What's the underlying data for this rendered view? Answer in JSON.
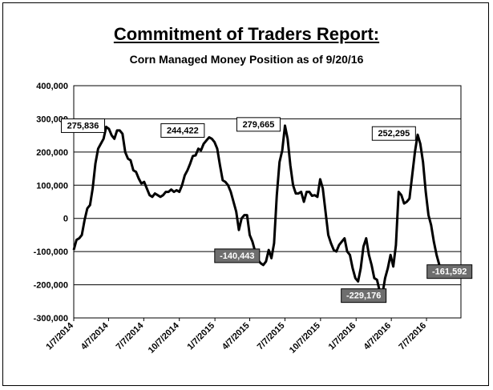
{
  "title": "Commitment of Traders Report:",
  "subtitle": "Corn Managed Money Position as of 9/20/16",
  "chart_data": {
    "type": "line",
    "ylim": [
      -300000,
      400000
    ],
    "xlim": [
      "2014-01-07",
      "2016-10-04"
    ],
    "y_ticks": [
      {
        "value": 400000,
        "label": "400,000"
      },
      {
        "value": 300000,
        "label": "300,000"
      },
      {
        "value": 200000,
        "label": "200,000"
      },
      {
        "value": 100000,
        "label": "100,000"
      },
      {
        "value": 0,
        "label": "0"
      },
      {
        "value": -100000,
        "label": "-100,000"
      },
      {
        "value": -200000,
        "label": "-200,000"
      },
      {
        "value": -300000,
        "label": "-300,000"
      }
    ],
    "x_ticks": [
      {
        "value": "2014-01-07",
        "label": "1/7/2014"
      },
      {
        "value": "2014-04-07",
        "label": "4/7/2014"
      },
      {
        "value": "2014-07-07",
        "label": "7/7/2014"
      },
      {
        "value": "2014-10-07",
        "label": "10/7/2014"
      },
      {
        "value": "2015-01-07",
        "label": "1/7/2015"
      },
      {
        "value": "2015-04-07",
        "label": "4/7/2015"
      },
      {
        "value": "2015-07-07",
        "label": "7/7/2015"
      },
      {
        "value": "2015-10-07",
        "label": "10/7/2015"
      },
      {
        "value": "2016-01-07",
        "label": "1/7/2016"
      },
      {
        "value": "2016-04-07",
        "label": "4/7/2016"
      },
      {
        "value": "2016-07-07",
        "label": "7/7/2016"
      }
    ],
    "series_color": "#000000",
    "series": [
      {
        "x": [
          "2014-01-07",
          "2014-01-14",
          "2014-01-21",
          "2014-01-28",
          "2014-02-04",
          "2014-02-11",
          "2014-02-18",
          "2014-02-25",
          "2014-03-04",
          "2014-03-11",
          "2014-03-18",
          "2014-03-25",
          "2014-04-01",
          "2014-04-08",
          "2014-04-15",
          "2014-04-22",
          "2014-04-29",
          "2014-05-06",
          "2014-05-13",
          "2014-05-20",
          "2014-05-27",
          "2014-06-03",
          "2014-06-10",
          "2014-06-17",
          "2014-06-24",
          "2014-07-01",
          "2014-07-08",
          "2014-07-15",
          "2014-07-22",
          "2014-07-29",
          "2014-08-05",
          "2014-08-12",
          "2014-08-19",
          "2014-08-26",
          "2014-09-02",
          "2014-09-09",
          "2014-09-16",
          "2014-09-23",
          "2014-09-30",
          "2014-10-07",
          "2014-10-14",
          "2014-10-21",
          "2014-10-28",
          "2014-11-04",
          "2014-11-11",
          "2014-11-18",
          "2014-11-25",
          "2014-12-02",
          "2014-12-09",
          "2014-12-16",
          "2014-12-23",
          "2014-12-30",
          "2015-01-06",
          "2015-01-13",
          "2015-01-20",
          "2015-01-27",
          "2015-02-03",
          "2015-02-10",
          "2015-02-17",
          "2015-02-24",
          "2015-03-03",
          "2015-03-10",
          "2015-03-17",
          "2015-03-24",
          "2015-03-31",
          "2015-04-07",
          "2015-04-14",
          "2015-04-21",
          "2015-04-28",
          "2015-05-05",
          "2015-05-12",
          "2015-05-19",
          "2015-05-26",
          "2015-06-02",
          "2015-06-09",
          "2015-06-16",
          "2015-06-23",
          "2015-06-30",
          "2015-07-07",
          "2015-07-14",
          "2015-07-21",
          "2015-07-28",
          "2015-08-04",
          "2015-08-11",
          "2015-08-18",
          "2015-08-25",
          "2015-09-01",
          "2015-09-08",
          "2015-09-15",
          "2015-09-22",
          "2015-09-29",
          "2015-10-06",
          "2015-10-13",
          "2015-10-20",
          "2015-10-27",
          "2015-11-03",
          "2015-11-10",
          "2015-11-17",
          "2015-11-24",
          "2015-12-01",
          "2015-12-08",
          "2015-12-15",
          "2015-12-22",
          "2015-12-29",
          "2016-01-05",
          "2016-01-12",
          "2016-01-19",
          "2016-01-26",
          "2016-02-02",
          "2016-02-09",
          "2016-02-16",
          "2016-02-23",
          "2016-03-01",
          "2016-03-08",
          "2016-03-15",
          "2016-03-22",
          "2016-03-29",
          "2016-04-05",
          "2016-04-12",
          "2016-04-19",
          "2016-04-26",
          "2016-05-03",
          "2016-05-10",
          "2016-05-17",
          "2016-05-24",
          "2016-05-31",
          "2016-06-07",
          "2016-06-14",
          "2016-06-21",
          "2016-06-28",
          "2016-07-05",
          "2016-07-12",
          "2016-07-19",
          "2016-07-26",
          "2016-08-02",
          "2016-08-09",
          "2016-08-16",
          "2016-08-23",
          "2016-08-30",
          "2016-09-06",
          "2016-09-13",
          "2016-09-20"
        ],
        "y": [
          -95000,
          -65000,
          -60000,
          -50000,
          -5000,
          30000,
          40000,
          90000,
          165000,
          210000,
          225000,
          240000,
          275836,
          270000,
          250000,
          240000,
          265000,
          265000,
          255000,
          200000,
          180000,
          175000,
          145000,
          140000,
          120000,
          105000,
          110000,
          90000,
          70000,
          65000,
          75000,
          70000,
          65000,
          70000,
          80000,
          80000,
          87000,
          80000,
          85000,
          80000,
          100000,
          130000,
          145000,
          165000,
          188000,
          190000,
          210000,
          205000,
          225000,
          235000,
          244422,
          240000,
          230000,
          210000,
          160000,
          115000,
          110000,
          100000,
          80000,
          50000,
          20000,
          -35000,
          0,
          10000,
          10000,
          -50000,
          -70000,
          -100000,
          -125000,
          -135000,
          -140443,
          -130000,
          -95000,
          -120000,
          -75000,
          70000,
          170000,
          205000,
          279665,
          240000,
          160000,
          100000,
          75000,
          75000,
          80000,
          50000,
          80000,
          80000,
          68000,
          70000,
          65000,
          118000,
          90000,
          20000,
          -50000,
          -75000,
          -95000,
          -100000,
          -80000,
          -70000,
          -60000,
          -100000,
          -110000,
          -150000,
          -180000,
          -190000,
          -150000,
          -85000,
          -60000,
          -110000,
          -140000,
          -180000,
          -185000,
          -220000,
          -229176,
          -180000,
          -150000,
          -110000,
          -145000,
          -80000,
          80000,
          70000,
          45000,
          50000,
          60000,
          130000,
          200000,
          252295,
          225000,
          170000,
          80000,
          10000,
          -20000,
          -70000,
          -110000,
          -140000,
          -161592,
          -178000,
          -175000,
          -150000,
          -160000,
          -165000
        ]
      }
    ],
    "annotations": [
      {
        "label": "275,836",
        "x": "2014-04-01",
        "y": 275836,
        "style": "white"
      },
      {
        "label": "244,422",
        "x": "2014-12-23",
        "y": 244422,
        "style": "white"
      },
      {
        "label": "279,665",
        "x": "2015-07-07",
        "y": 279665,
        "style": "white"
      },
      {
        "label": "252,295",
        "x": "2016-06-21",
        "y": 252295,
        "style": "white"
      },
      {
        "label": "-140,443",
        "x": "2015-05-19",
        "y": -140443,
        "style": "gray"
      },
      {
        "label": "-229,176",
        "x": "2016-03-08",
        "y": -229176,
        "style": "gray"
      },
      {
        "label": "-161,592",
        "x": "2016-08-23",
        "y": -161592,
        "style": "gray"
      }
    ]
  }
}
